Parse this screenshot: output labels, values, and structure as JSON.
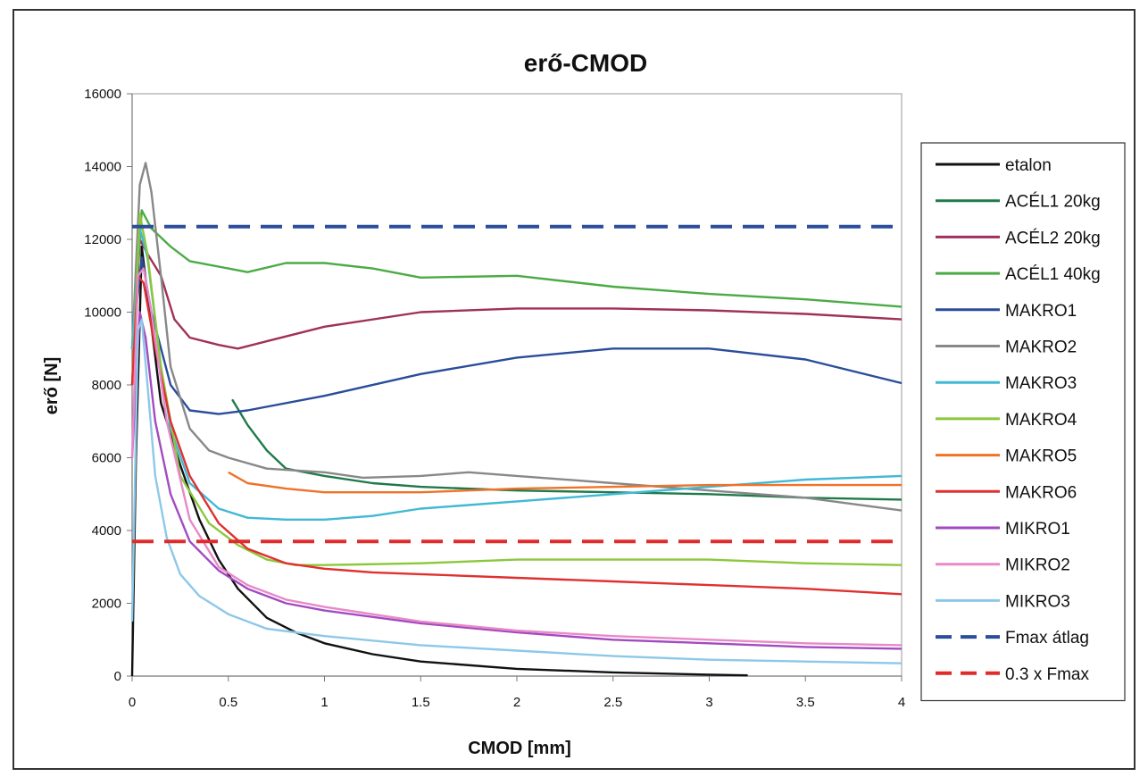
{
  "chart_data": {
    "type": "line",
    "title": "erő-CMOD",
    "xlabel": "CMOD [mm]",
    "ylabel": "erő [N]",
    "xlim": [
      0,
      4
    ],
    "ylim": [
      0,
      16000
    ],
    "x_ticks": [
      "0",
      "0.5",
      "1",
      "1.5",
      "2",
      "2.5",
      "3",
      "3.5",
      "4"
    ],
    "y_ticks": [
      "0",
      "2000",
      "4000",
      "6000",
      "8000",
      "10000",
      "12000",
      "14000",
      "16000"
    ],
    "grid": false,
    "legend_position": "right",
    "series": [
      {
        "name": "etalon",
        "color": "#111111",
        "dash": "solid",
        "points": [
          [
            0,
            0
          ],
          [
            0.02,
            6000
          ],
          [
            0.05,
            11800
          ],
          [
            0.08,
            10500
          ],
          [
            0.15,
            7500
          ],
          [
            0.25,
            5800
          ],
          [
            0.35,
            4300
          ],
          [
            0.45,
            3200
          ],
          [
            0.55,
            2400
          ],
          [
            0.7,
            1600
          ],
          [
            0.85,
            1200
          ],
          [
            1.0,
            900
          ],
          [
            1.25,
            600
          ],
          [
            1.5,
            400
          ],
          [
            2.0,
            200
          ],
          [
            2.5,
            100
          ],
          [
            3.0,
            40
          ],
          [
            3.2,
            20
          ]
        ]
      },
      {
        "name": "ACÉL1 20kg",
        "color": "#1f7a4a",
        "dash": "solid",
        "points": [
          [
            0.52,
            7600
          ],
          [
            0.6,
            6900
          ],
          [
            0.7,
            6200
          ],
          [
            0.8,
            5700
          ],
          [
            1.0,
            5500
          ],
          [
            1.25,
            5300
          ],
          [
            1.5,
            5200
          ],
          [
            2.0,
            5100
          ],
          [
            2.5,
            5050
          ],
          [
            3.0,
            5000
          ],
          [
            3.5,
            4900
          ],
          [
            4.0,
            4850
          ]
        ]
      },
      {
        "name": "ACÉL2 20kg",
        "color": "#a0305a",
        "dash": "solid",
        "points": [
          [
            0,
            8000
          ],
          [
            0.04,
            12000
          ],
          [
            0.08,
            11600
          ],
          [
            0.15,
            11000
          ],
          [
            0.22,
            9800
          ],
          [
            0.3,
            9300
          ],
          [
            0.45,
            9100
          ],
          [
            0.55,
            9000
          ],
          [
            0.7,
            9200
          ],
          [
            1.0,
            9600
          ],
          [
            1.5,
            10000
          ],
          [
            2.0,
            10100
          ],
          [
            2.5,
            10100
          ],
          [
            3.0,
            10050
          ],
          [
            3.5,
            9950
          ],
          [
            4.0,
            9800
          ]
        ]
      },
      {
        "name": "ACÉL1 40kg",
        "color": "#4bab45",
        "dash": "solid",
        "points": [
          [
            0,
            9000
          ],
          [
            0.05,
            12800
          ],
          [
            0.1,
            12300
          ],
          [
            0.2,
            11800
          ],
          [
            0.3,
            11400
          ],
          [
            0.5,
            11200
          ],
          [
            0.6,
            11100
          ],
          [
            0.8,
            11350
          ],
          [
            1.0,
            11350
          ],
          [
            1.25,
            11200
          ],
          [
            1.5,
            10950
          ],
          [
            2.0,
            11000
          ],
          [
            2.5,
            10700
          ],
          [
            3.0,
            10500
          ],
          [
            3.5,
            10350
          ],
          [
            4.0,
            10150
          ]
        ]
      },
      {
        "name": "MAKRO1",
        "color": "#2a4d9a",
        "dash": "solid",
        "points": [
          [
            0,
            9000
          ],
          [
            0.05,
            11500
          ],
          [
            0.1,
            10000
          ],
          [
            0.2,
            8000
          ],
          [
            0.3,
            7300
          ],
          [
            0.45,
            7200
          ],
          [
            0.6,
            7300
          ],
          [
            1.0,
            7700
          ],
          [
            1.5,
            8300
          ],
          [
            2.0,
            8750
          ],
          [
            2.5,
            9000
          ],
          [
            3.0,
            9000
          ],
          [
            3.5,
            8700
          ],
          [
            4.0,
            8050
          ]
        ]
      },
      {
        "name": "MAKRO2",
        "color": "#888888",
        "dash": "solid",
        "points": [
          [
            0,
            9000
          ],
          [
            0.04,
            13500
          ],
          [
            0.07,
            14100
          ],
          [
            0.1,
            13300
          ],
          [
            0.15,
            11000
          ],
          [
            0.2,
            8500
          ],
          [
            0.3,
            6800
          ],
          [
            0.4,
            6200
          ],
          [
            0.5,
            6000
          ],
          [
            0.7,
            5700
          ],
          [
            1.0,
            5600
          ],
          [
            1.2,
            5450
          ],
          [
            1.5,
            5500
          ],
          [
            1.75,
            5600
          ],
          [
            2.0,
            5500
          ],
          [
            2.5,
            5300
          ],
          [
            3.0,
            5100
          ],
          [
            3.5,
            4900
          ],
          [
            4.0,
            4550
          ]
        ]
      },
      {
        "name": "MAKRO3",
        "color": "#41b8d5",
        "dash": "solid",
        "points": [
          [
            0,
            9000
          ],
          [
            0.04,
            12300
          ],
          [
            0.08,
            11500
          ],
          [
            0.15,
            8500
          ],
          [
            0.2,
            6800
          ],
          [
            0.3,
            5300
          ],
          [
            0.45,
            4600
          ],
          [
            0.6,
            4350
          ],
          [
            0.8,
            4300
          ],
          [
            1.0,
            4300
          ],
          [
            1.25,
            4400
          ],
          [
            1.5,
            4600
          ],
          [
            2.0,
            4800
          ],
          [
            2.5,
            5000
          ],
          [
            3.0,
            5200
          ],
          [
            3.5,
            5400
          ],
          [
            4.0,
            5500
          ]
        ]
      },
      {
        "name": "MAKRO4",
        "color": "#8bc83c",
        "dash": "solid",
        "points": [
          [
            0,
            8000
          ],
          [
            0.04,
            12700
          ],
          [
            0.08,
            11600
          ],
          [
            0.15,
            8500
          ],
          [
            0.25,
            5500
          ],
          [
            0.4,
            4200
          ],
          [
            0.55,
            3600
          ],
          [
            0.7,
            3200
          ],
          [
            0.85,
            3050
          ],
          [
            1.0,
            3050
          ],
          [
            1.5,
            3100
          ],
          [
            2.0,
            3200
          ],
          [
            2.5,
            3200
          ],
          [
            3.0,
            3200
          ],
          [
            3.5,
            3100
          ],
          [
            4.0,
            3050
          ]
        ]
      },
      {
        "name": "MAKRO5",
        "color": "#f07228",
        "dash": "solid",
        "points": [
          [
            0.5,
            5600
          ],
          [
            0.6,
            5300
          ],
          [
            0.8,
            5150
          ],
          [
            1.0,
            5050
          ],
          [
            1.5,
            5050
          ],
          [
            2.0,
            5150
          ],
          [
            2.5,
            5200
          ],
          [
            3.0,
            5250
          ],
          [
            3.5,
            5250
          ],
          [
            4.0,
            5250
          ]
        ]
      },
      {
        "name": "MAKRO6",
        "color": "#e03030",
        "dash": "solid",
        "points": [
          [
            0,
            8000
          ],
          [
            0.03,
            11000
          ],
          [
            0.06,
            10800
          ],
          [
            0.12,
            9000
          ],
          [
            0.2,
            7000
          ],
          [
            0.3,
            5500
          ],
          [
            0.45,
            4200
          ],
          [
            0.6,
            3500
          ],
          [
            0.8,
            3100
          ],
          [
            1.0,
            2950
          ],
          [
            1.25,
            2850
          ],
          [
            1.5,
            2800
          ],
          [
            2.0,
            2700
          ],
          [
            2.5,
            2600
          ],
          [
            3.0,
            2500
          ],
          [
            3.5,
            2400
          ],
          [
            4.0,
            2250
          ]
        ]
      },
      {
        "name": "MIKRO1",
        "color": "#a24bc0",
        "dash": "solid",
        "points": [
          [
            0,
            6000
          ],
          [
            0.04,
            10000
          ],
          [
            0.07,
            9300
          ],
          [
            0.12,
            7000
          ],
          [
            0.2,
            5000
          ],
          [
            0.3,
            3700
          ],
          [
            0.45,
            2900
          ],
          [
            0.6,
            2400
          ],
          [
            0.8,
            2000
          ],
          [
            1.0,
            1800
          ],
          [
            1.5,
            1450
          ],
          [
            2.0,
            1200
          ],
          [
            2.5,
            1000
          ],
          [
            3.0,
            900
          ],
          [
            3.5,
            800
          ],
          [
            4.0,
            750
          ]
        ]
      },
      {
        "name": "MIKRO2",
        "color": "#e889c8",
        "dash": "solid",
        "points": [
          [
            0,
            6000
          ],
          [
            0.03,
            11000
          ],
          [
            0.06,
            11200
          ],
          [
            0.1,
            10000
          ],
          [
            0.18,
            7000
          ],
          [
            0.3,
            4300
          ],
          [
            0.45,
            3000
          ],
          [
            0.6,
            2500
          ],
          [
            0.8,
            2100
          ],
          [
            1.0,
            1900
          ],
          [
            1.5,
            1500
          ],
          [
            2.0,
            1250
          ],
          [
            2.5,
            1100
          ],
          [
            3.0,
            1000
          ],
          [
            3.5,
            900
          ],
          [
            4.0,
            850
          ]
        ]
      },
      {
        "name": "MIKRO3",
        "color": "#8ec8e8",
        "dash": "solid",
        "points": [
          [
            0,
            1500
          ],
          [
            0.03,
            9500
          ],
          [
            0.05,
            9800
          ],
          [
            0.08,
            8000
          ],
          [
            0.12,
            5500
          ],
          [
            0.18,
            3800
          ],
          [
            0.25,
            2800
          ],
          [
            0.35,
            2200
          ],
          [
            0.5,
            1700
          ],
          [
            0.7,
            1300
          ],
          [
            1.0,
            1100
          ],
          [
            1.5,
            850
          ],
          [
            2.0,
            700
          ],
          [
            2.5,
            550
          ],
          [
            3.0,
            450
          ],
          [
            3.5,
            400
          ],
          [
            4.0,
            350
          ]
        ]
      },
      {
        "name": "Fmax átlag",
        "color": "#2b4e9b",
        "dash": "dashed",
        "points": [
          [
            0,
            12350
          ],
          [
            4,
            12350
          ]
        ]
      },
      {
        "name": "0.3 x Fmax",
        "color": "#e02b2b",
        "dash": "dashed",
        "points": [
          [
            0,
            3700
          ],
          [
            4,
            3700
          ]
        ]
      }
    ]
  }
}
